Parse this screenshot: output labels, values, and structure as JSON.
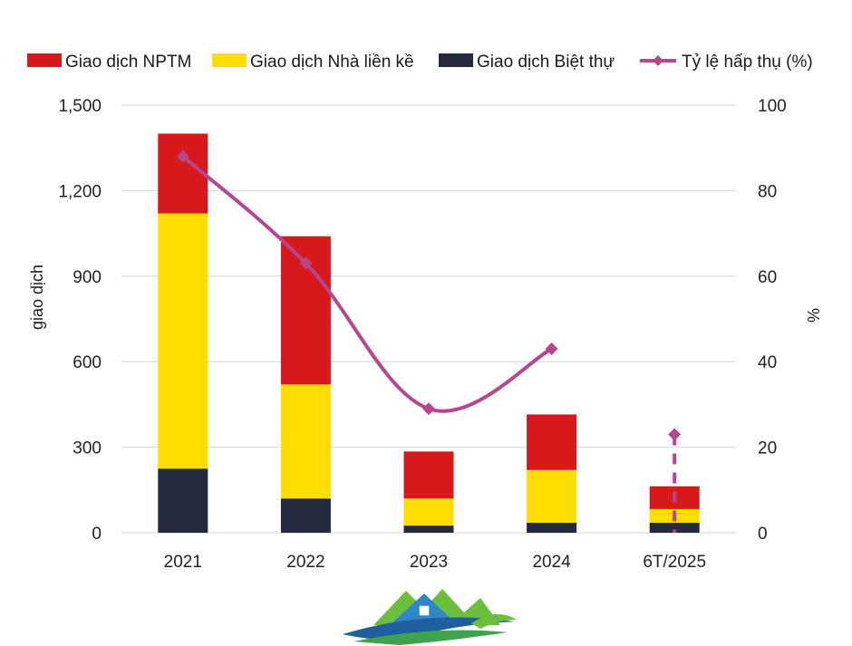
{
  "chart_data": {
    "type": "bar",
    "stacked": true,
    "categories": [
      "2021",
      "2022",
      "2023",
      "2024",
      "6T/2025"
    ],
    "series": [
      {
        "name": "Giao dịch NPTM",
        "color": "#d7191c",
        "values": [
          280,
          520,
          165,
          195,
          80
        ]
      },
      {
        "name": "Giao dịch Nhà liền kề",
        "color": "#ffdd00",
        "values": [
          895,
          400,
          95,
          185,
          48
        ]
      },
      {
        "name": "Giao dịch Biệt thự",
        "color": "#232a3d",
        "values": [
          225,
          120,
          25,
          35,
          35
        ]
      }
    ],
    "line_series": {
      "name": "Tỷ lệ hấp thụ (%)",
      "color": "#b5478f",
      "axis": "right",
      "values": [
        88,
        63,
        29,
        43,
        23
      ],
      "dashed_last_segment": true
    },
    "ylabel": "giao dịch",
    "y2label": "%",
    "ylim": [
      0,
      1500
    ],
    "yticks": [
      "0",
      "300",
      "600",
      "900",
      "1,200",
      "1,500"
    ],
    "y2lim": [
      0,
      100
    ],
    "y2ticks": [
      "0",
      "20",
      "40",
      "60",
      "80",
      "100"
    ],
    "grid": true,
    "legend_position": "top"
  },
  "logo": {
    "name": "house-wave-logo-icon"
  }
}
